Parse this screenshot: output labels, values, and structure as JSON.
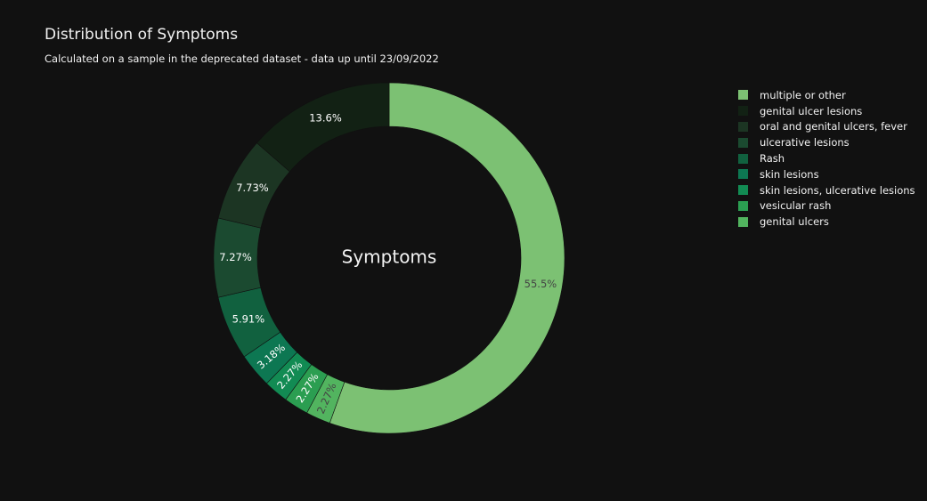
{
  "title": "Distribution of Symptoms",
  "subtitle": "Calculated on a sample in the deprecated dataset - data up until 23/09/2022",
  "chart_data": {
    "type": "pie",
    "hole": true,
    "center_label": "Symptoms",
    "legend_position": "right",
    "slices": [
      {
        "name": "multiple or other",
        "percent": 55.5,
        "label": "55.5%",
        "color": "#7cc173"
      },
      {
        "name": "genital ulcers",
        "percent": 2.27,
        "label": "2.27%",
        "color": "#52b45f"
      },
      {
        "name": "vesicular rash",
        "percent": 2.27,
        "label": "2.27%",
        "color": "#2b9e51"
      },
      {
        "name": "skin lesions, ulcerative lesions",
        "percent": 2.27,
        "label": "2.27%",
        "color": "#128b53"
      },
      {
        "name": "skin lesions",
        "percent": 3.18,
        "label": "3.18%",
        "color": "#0d7752"
      },
      {
        "name": "Rash",
        "percent": 5.91,
        "label": "5.91%",
        "color": "#11613f"
      },
      {
        "name": "ulcerative lesions",
        "percent": 7.27,
        "label": "7.27%",
        "color": "#1b4a30"
      },
      {
        "name": "oral and genital ulcers, fever",
        "percent": 7.73,
        "label": "7.73%",
        "color": "#1c3523"
      },
      {
        "name": "genital ulcer lesions",
        "percent": 13.6,
        "label": "13.6%",
        "color": "#122114"
      }
    ],
    "legend_order": [
      "multiple or other",
      "genital ulcer lesions",
      "oral and genital ulcers, fever",
      "ulcerative lesions",
      "Rash",
      "skin lesions",
      "skin lesions, ulcerative lesions",
      "vesicular rash",
      "genital ulcers"
    ]
  }
}
